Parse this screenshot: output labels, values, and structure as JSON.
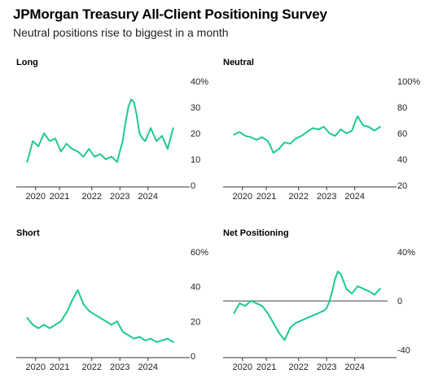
{
  "title": "JPMorgan Treasury All-Client Positioning Survey",
  "subtitle": "Neutral positions rise to biggest in a month",
  "colors": {
    "line": "#1ec98f",
    "axis": "#333333",
    "zero": "#444444"
  },
  "x_tick_labels": [
    "2020",
    "2021",
    "2022",
    "2023",
    "2024"
  ],
  "chart_data": [
    {
      "type": "line",
      "title": "Long",
      "ylim": [
        0,
        40
      ],
      "y_tick_labels": [
        "40%",
        "30",
        "20",
        "10",
        "0"
      ],
      "y_ticks": [
        40,
        30,
        20,
        10,
        0
      ],
      "x": [
        2019.7,
        2019.9,
        2020.1,
        2020.3,
        2020.5,
        2020.7,
        2020.9,
        2021.1,
        2021.3,
        2021.5,
        2021.7,
        2021.9,
        2022.1,
        2022.3,
        2022.5,
        2022.7,
        2022.9,
        2023.0,
        2023.1,
        2023.2,
        2023.3,
        2023.4,
        2023.5,
        2023.6,
        2023.7,
        2023.8,
        2023.9,
        2024.1,
        2024.3,
        2024.5,
        2024.7,
        2024.9
      ],
      "values": [
        9,
        17,
        15,
        20,
        17,
        18,
        13,
        16,
        14,
        13,
        11,
        14,
        11,
        12,
        10,
        11,
        9,
        13,
        17,
        24,
        30,
        33,
        32,
        27,
        20,
        18,
        17,
        22,
        17,
        19,
        14,
        22
      ]
    },
    {
      "type": "line",
      "title": "Neutral",
      "ylim": [
        20,
        100
      ],
      "y_tick_labels": [
        "100%",
        "80",
        "60",
        "40",
        "20"
      ],
      "y_ticks": [
        100,
        80,
        60,
        40,
        20
      ],
      "x": [
        2019.7,
        2019.9,
        2020.1,
        2020.3,
        2020.5,
        2020.7,
        2020.9,
        2021.0,
        2021.1,
        2021.3,
        2021.5,
        2021.7,
        2021.9,
        2022.1,
        2022.3,
        2022.5,
        2022.7,
        2022.9,
        2023.1,
        2023.3,
        2023.5,
        2023.7,
        2023.9,
        2024.0,
        2024.1,
        2024.3,
        2024.5,
        2024.7,
        2024.9
      ],
      "values": [
        59,
        61,
        58,
        57,
        55,
        57,
        54,
        50,
        45,
        48,
        53,
        52,
        56,
        58,
        61,
        64,
        63,
        65,
        60,
        58,
        63,
        60,
        62,
        68,
        73,
        66,
        65,
        62,
        65
      ]
    },
    {
      "type": "line",
      "title": "Short",
      "ylim": [
        0,
        60
      ],
      "y_tick_labels": [
        "60%",
        "40",
        "20",
        "0"
      ],
      "y_ticks": [
        60,
        40,
        20,
        0
      ],
      "x": [
        2019.7,
        2019.9,
        2020.1,
        2020.3,
        2020.5,
        2020.7,
        2020.9,
        2021.1,
        2021.3,
        2021.5,
        2021.7,
        2021.9,
        2022.1,
        2022.3,
        2022.5,
        2022.7,
        2022.9,
        2023.0,
        2023.1,
        2023.3,
        2023.5,
        2023.7,
        2023.9,
        2024.1,
        2024.3,
        2024.5,
        2024.7,
        2024.9
      ],
      "values": [
        22,
        18,
        16,
        18,
        16,
        18,
        20,
        25,
        32,
        38,
        30,
        26,
        24,
        22,
        20,
        18,
        20,
        17,
        14,
        12,
        10,
        11,
        9,
        10,
        8,
        9,
        10,
        8
      ]
    },
    {
      "type": "line",
      "title": "Net Positioning",
      "ylim": [
        -45,
        40
      ],
      "y_tick_labels": [
        "40%",
        "0",
        "-40"
      ],
      "y_ticks": [
        40,
        0,
        -40
      ],
      "reference_line": 0,
      "x": [
        2019.7,
        2019.9,
        2020.1,
        2020.3,
        2020.5,
        2020.7,
        2020.9,
        2021.1,
        2021.3,
        2021.5,
        2021.7,
        2021.9,
        2022.1,
        2022.3,
        2022.5,
        2022.7,
        2022.9,
        2023.0,
        2023.1,
        2023.2,
        2023.3,
        2023.4,
        2023.5,
        2023.6,
        2023.7,
        2023.8,
        2023.9,
        2024.1,
        2024.3,
        2024.5,
        2024.7,
        2024.9
      ],
      "values": [
        -10,
        -2,
        -4,
        0,
        -2,
        -4,
        -10,
        -18,
        -26,
        -32,
        -22,
        -18,
        -16,
        -14,
        -12,
        -10,
        -8,
        -6,
        0,
        8,
        18,
        24,
        22,
        16,
        10,
        8,
        6,
        12,
        10,
        8,
        5,
        10
      ]
    }
  ]
}
